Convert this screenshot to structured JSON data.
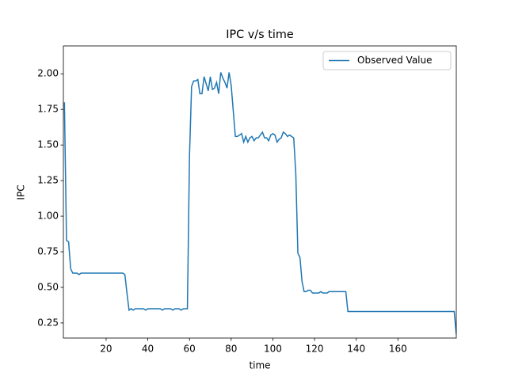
{
  "chart_data": {
    "type": "line",
    "title": "IPC v/s time",
    "x_label": "time",
    "y_label": "IPC",
    "x": [
      0,
      1,
      2,
      3,
      4,
      6,
      7,
      8,
      28,
      29,
      30,
      31,
      32,
      33,
      34,
      38,
      39,
      40,
      46,
      47,
      48,
      51,
      52,
      53,
      55,
      56,
      57,
      59,
      60,
      61,
      62,
      63,
      64,
      65,
      66,
      67,
      68,
      69,
      70,
      71,
      72,
      73,
      74,
      75,
      76,
      77,
      78,
      79,
      80,
      82,
      83,
      84,
      85,
      86,
      87,
      88,
      89,
      90,
      91,
      92,
      93,
      94,
      95,
      96,
      97,
      98,
      99,
      100,
      101,
      102,
      103,
      104,
      105,
      106,
      107,
      108,
      109,
      110,
      111,
      112,
      113,
      114,
      115,
      116,
      117,
      118,
      119,
      120,
      122,
      123,
      124,
      126,
      127,
      135,
      136,
      187,
      188
    ],
    "series": [
      {
        "name": "Observed Value",
        "color": "#1f77b4",
        "values": [
          1.8,
          0.83,
          0.82,
          0.63,
          0.6,
          0.6,
          0.59,
          0.6,
          0.6,
          0.59,
          0.46,
          0.34,
          0.35,
          0.34,
          0.35,
          0.35,
          0.34,
          0.35,
          0.35,
          0.34,
          0.35,
          0.35,
          0.34,
          0.35,
          0.35,
          0.34,
          0.35,
          0.35,
          1.42,
          1.91,
          1.95,
          1.95,
          1.96,
          1.86,
          1.86,
          1.98,
          1.93,
          1.88,
          1.98,
          1.89,
          1.9,
          1.94,
          1.86,
          2.01,
          1.97,
          1.94,
          1.9,
          2.01,
          1.92,
          1.56,
          1.56,
          1.57,
          1.58,
          1.52,
          1.56,
          1.52,
          1.55,
          1.56,
          1.53,
          1.55,
          1.55,
          1.57,
          1.59,
          1.55,
          1.55,
          1.53,
          1.57,
          1.58,
          1.57,
          1.52,
          1.54,
          1.55,
          1.59,
          1.58,
          1.56,
          1.57,
          1.56,
          1.55,
          1.3,
          0.74,
          0.71,
          0.54,
          0.47,
          0.47,
          0.48,
          0.48,
          0.46,
          0.46,
          0.46,
          0.47,
          0.46,
          0.46,
          0.47,
          0.47,
          0.33,
          0.33,
          0.17
        ]
      }
    ],
    "xlim": [
      -0.5,
      188
    ],
    "ylim": [
      0.144,
      2.196
    ],
    "xticks": [
      20,
      40,
      60,
      80,
      100,
      120,
      140,
      160
    ],
    "yticks": [
      0.25,
      {
        "value": 0.5,
        "label": "0.50"
      },
      0.75,
      {
        "value": 1.0,
        "label": "1.00"
      },
      1.25,
      {
        "value": 1.5,
        "label": "1.50"
      },
      1.75,
      {
        "value": 2.0,
        "label": "2.00"
      }
    ],
    "legend": "upper right"
  }
}
